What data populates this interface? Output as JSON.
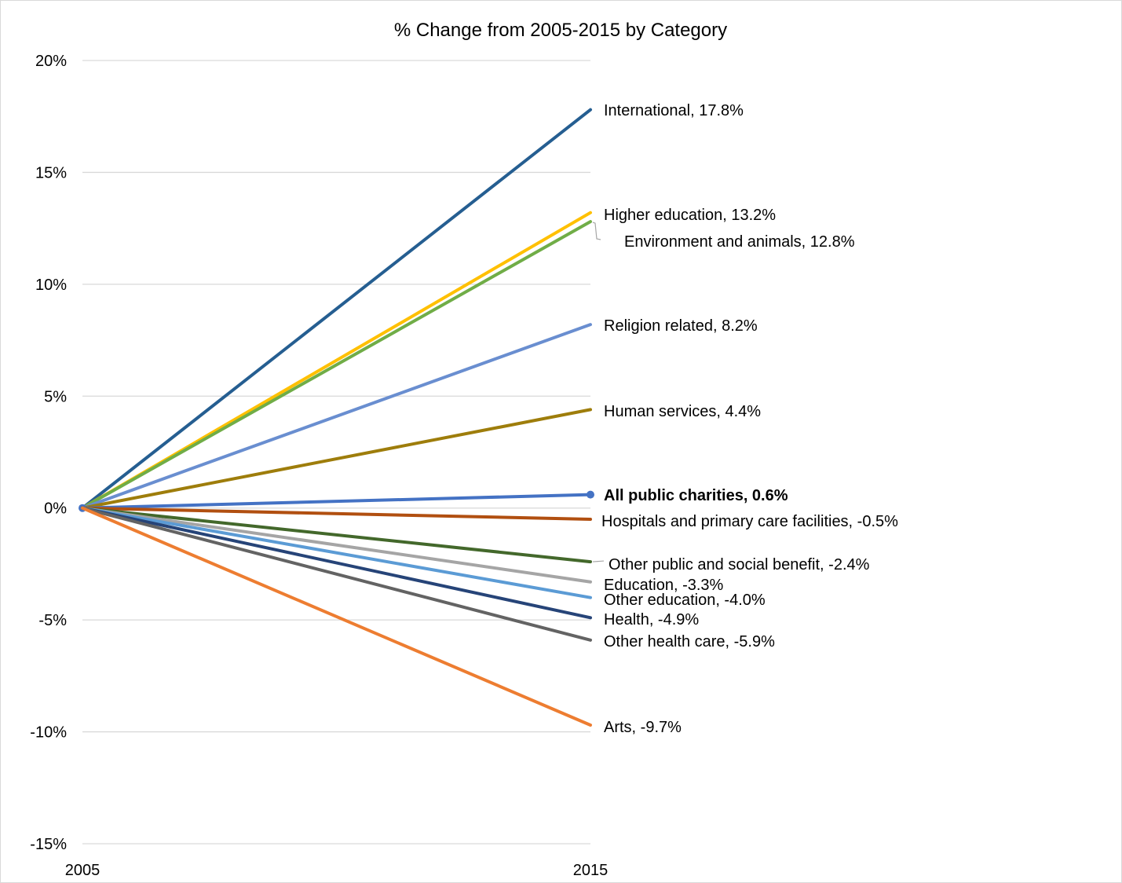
{
  "chart_data": {
    "type": "line",
    "title": "% Change from 2005-2015 by Category",
    "x": [
      "2005",
      "2015"
    ],
    "y_ticks": [
      "20%",
      "15%",
      "10%",
      "5%",
      "0%",
      "-5%",
      "-10%",
      "-15%"
    ],
    "ylim": [
      -15,
      20
    ],
    "y_unit": "%",
    "grid": true,
    "legend": "none",
    "series": [
      {
        "name": "International",
        "values": [
          0,
          17.8
        ],
        "color": "#255e91",
        "label": "International, 17.8%"
      },
      {
        "name": "Higher education",
        "values": [
          0,
          13.2
        ],
        "color": "#ffc000",
        "label": "Higher education, 13.2%"
      },
      {
        "name": "Environment and animals",
        "values": [
          0,
          12.8
        ],
        "color": "#70ad47",
        "label": "Environment and animals, 12.8%"
      },
      {
        "name": "Religion related",
        "values": [
          0,
          8.2
        ],
        "color": "#698ed0",
        "label": "Religion related, 8.2%"
      },
      {
        "name": "Human services",
        "values": [
          0,
          4.4
        ],
        "color": "#9e7d0b",
        "label": "Human services, 4.4%"
      },
      {
        "name": "All public charities",
        "values": [
          0,
          0.6
        ],
        "color": "#4472c4",
        "label": "All public charities, 0.6%",
        "bold": true,
        "markers": true
      },
      {
        "name": "Hospitals and primary care facilities",
        "values": [
          0,
          -0.5
        ],
        "color": "#b14f10",
        "label": "Hospitals and primary care facilities, -0.5%"
      },
      {
        "name": "Other public and social benefit",
        "values": [
          0,
          -2.4
        ],
        "color": "#43682b",
        "label": "Other public and social benefit, -2.4%"
      },
      {
        "name": "Education",
        "values": [
          0,
          -3.3
        ],
        "color": "#a5a5a5",
        "label": "Education, -3.3%"
      },
      {
        "name": "Other education",
        "values": [
          0,
          -4.0
        ],
        "color": "#5b9bd5",
        "label": "Other education, -4.0%"
      },
      {
        "name": "Health",
        "values": [
          0,
          -4.9
        ],
        "color": "#264478",
        "label": "Health, -4.9%"
      },
      {
        "name": "Other health care",
        "values": [
          0,
          -5.9
        ],
        "color": "#636363",
        "label": "Other health care, -5.9%"
      },
      {
        "name": "Arts",
        "values": [
          0,
          -9.7
        ],
        "color": "#ed7d31",
        "label": "Arts, -9.7%"
      }
    ]
  }
}
